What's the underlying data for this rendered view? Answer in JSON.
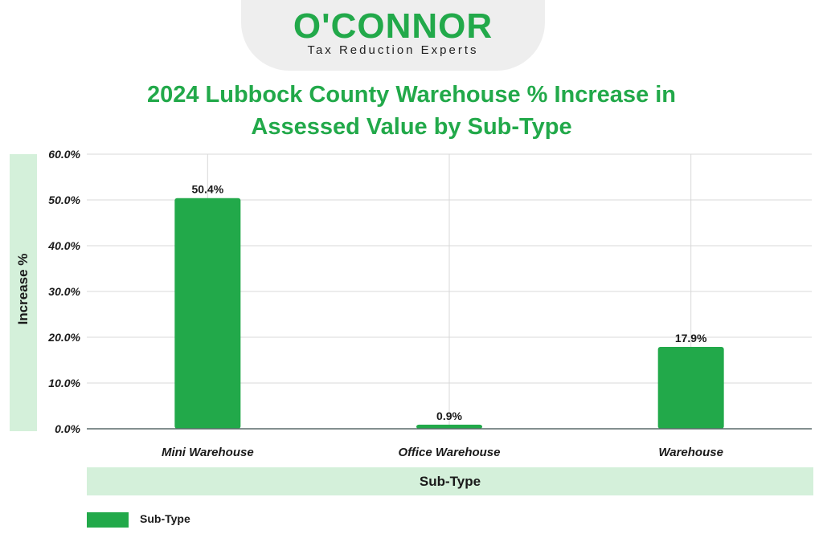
{
  "brand": {
    "name": "O'CONNOR",
    "tagline": "Tax Reduction Experts"
  },
  "colors": {
    "accent": "#22a94a",
    "band": "#d4f0da",
    "text": "#1a1a1a",
    "grid": "#d9d9d9"
  },
  "chart_data": {
    "type": "bar",
    "title": "2024 Lubbock County Warehouse % Increase in Assessed Value by Sub-Type",
    "xlabel": "Sub-Type",
    "ylabel": "Increase %",
    "categories": [
      "Mini Warehouse",
      "Office Warehouse",
      "Warehouse"
    ],
    "series": [
      {
        "name": "Sub-Type",
        "values": [
          50.4,
          0.9,
          17.9
        ],
        "labels": [
          "50.4%",
          "0.9%",
          "17.9%"
        ]
      }
    ],
    "ylim": [
      0,
      60
    ],
    "yticks": [
      "0.0%",
      "10.0%",
      "20.0%",
      "30.0%",
      "40.0%",
      "50.0%",
      "60.0%"
    ],
    "grid": true,
    "legend": "bottom-left"
  }
}
